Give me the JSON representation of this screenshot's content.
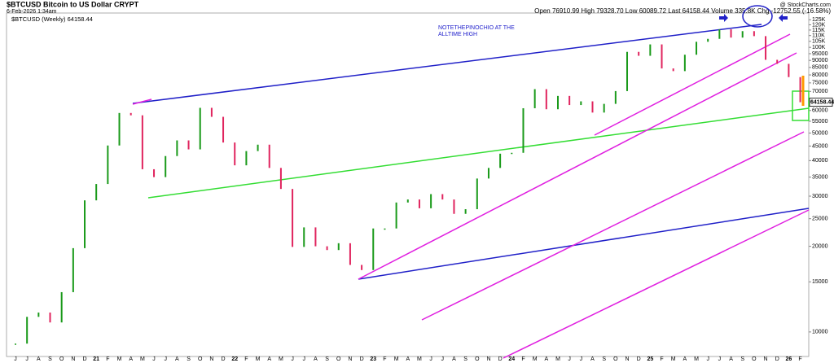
{
  "chart_data": {
    "type": "ohlc",
    "log": true,
    "title": "$BTCUSD Bitcoin to US Dollar CRYPT",
    "date": "6-Feb-2026 1:34am",
    "source": "@ StockCharts.com",
    "quote": "Open 76910.99 High 79328.70 Low 60089.72 Last 64158.44 Volume 335.8K Chg -12752.55 (-16.58%)",
    "legend": "$BTCUSD (Weekly) 64158.44",
    "annotation": [
      "NOTETHEPINOCHIO AT THE",
      "ALLTIME HIGH"
    ],
    "last_label": "64158.44",
    "up_color": "#1a9a1a",
    "down_color": "#e0245e",
    "categories": [
      "J",
      "J",
      "A",
      "S",
      "O",
      "N",
      "D",
      "21",
      "F",
      "M",
      "A",
      "M",
      "J",
      "J",
      "A",
      "S",
      "O",
      "N",
      "D",
      "22",
      "F",
      "M",
      "A",
      "M",
      "J",
      "J",
      "A",
      "S",
      "O",
      "N",
      "D",
      "23",
      "F",
      "M",
      "A",
      "M",
      "J",
      "J",
      "A",
      "S",
      "O",
      "N",
      "D",
      "24",
      "F",
      "M",
      "A",
      "M",
      "J",
      "J",
      "A",
      "S",
      "O",
      "N",
      "D",
      "25",
      "F",
      "M",
      "A",
      "M",
      "J",
      "J",
      "A",
      "S",
      "O",
      "N",
      "D",
      "26",
      "F"
    ],
    "values": [
      9100,
      11300,
      11700,
      10800,
      13800,
      19700,
      29000,
      33100,
      45200,
      58800,
      57700,
      37300,
      35000,
      41500,
      47100,
      43800,
      61300,
      57000,
      46300,
      38500,
      43200,
      45500,
      37700,
      31800,
      19900,
      23300,
      20000,
      19400,
      20500,
      17200,
      16500,
      23100,
      23100,
      28500,
      29200,
      27200,
      30500,
      29200,
      26000,
      27000,
      34600,
      37700,
      42300,
      42600,
      61100,
      71300,
      60600,
      67500,
      62700,
      64600,
      59000,
      63300,
      70200,
      96400,
      93400,
      102400,
      84300,
      82500,
      94200,
      104600,
      107100,
      115700,
      108200,
      114000,
      109500,
      90400,
      87500,
      78600,
      64158.44
    ],
    "ylim": [
      8200,
      132000
    ],
    "yticks": [
      10000,
      15000,
      20000,
      25000,
      30000,
      35000,
      40000,
      45000,
      50000,
      55000,
      60000,
      65000,
      70000,
      75000,
      80000,
      85000,
      90000,
      95000,
      {
        "value": 100000,
        "label": "100K"
      },
      {
        "value": 105000,
        "label": "105K"
      },
      {
        "value": 110000,
        "label": "110K"
      },
      {
        "value": 115000,
        "label": "115K"
      },
      {
        "value": 120000,
        "label": "120K"
      },
      {
        "value": 125000,
        "label": "125K"
      }
    ]
  }
}
